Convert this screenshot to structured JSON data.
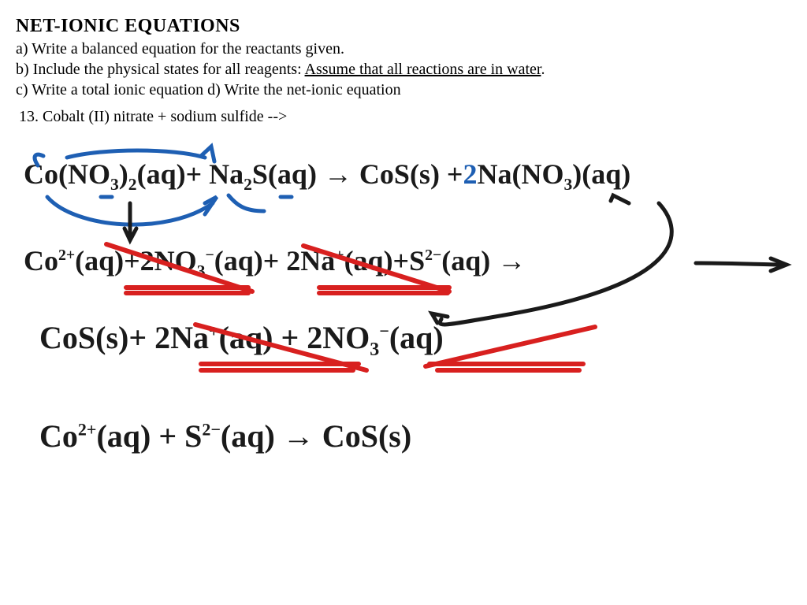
{
  "title": "NET-IONIC EQUATIONS",
  "instr_a": "a)  Write a balanced equation for the reactants given.",
  "instr_b_pre": "b)  Include the physical states for all reagents:  ",
  "instr_b_under": "Assume that all reactions are in water",
  "instr_b_post": ".",
  "instr_cd": "c)  Write a total ionic equation      d)  Write the net-ionic equation",
  "problem": "13. Cobalt (II) nitrate  +  sodium sulfide  -->",
  "colors": {
    "text": "#1a1a1a",
    "blue": "#1e5fb3",
    "red": "#d8201f",
    "black": "#1a1a1a"
  },
  "equations": {
    "line1_html": "Co(NO<sub>3</sub>)<sub>2</sub>(aq)+ Na<sub>2</sub>S(aq) &rarr; CoS(s) +<span class='blue'>2</span>Na(NO<sub>3</sub>)(aq)",
    "line2_html": "Co<sup>2+</sup>(aq)+2NO<sub>3</sub><sup>&minus;</sup>(aq)+ 2Na<sup>+</sup>(aq)+S<sup>2&minus;</sup>(aq) &#8594;",
    "line3_html": "CoS(s)+ 2Na<sup>+</sup>(aq) + 2NO<sub>3</sub><sup>&minus;</sup>(aq)",
    "line4_html": "Co<sup>2+</sup>(aq) + S<sup>2&minus;</sup>(aq) &rarr; CoS(s)"
  },
  "annotations": {
    "blue_strokes": [
      "M55 198 C45 193 40 198 48 210",
      "M60 250 C95 290 210 300 270 258",
      "M260 258 L275 250 L260 272",
      "M85 200 C130 188 220 188 260 200",
      "M255 198 L268 186 L272 205",
      "M290 248 C300 260 310 268 335 268",
      "M128 250 L142 250 M356 250 L370 250"
    ],
    "black_strokes": [
      "M165 258 L165 300 M158 290 L165 305 L173 290",
      "M775 255 L778 248 L798 258",
      "M836 258 C870 295 870 360 640 400 C555 415 555 415 560 405",
      "M555 410 L548 398 L568 402",
      "M883 334 C930 334 970 336 990 336",
      "M978 328 L998 336 L978 344"
    ],
    "red_strokes": [
      "M135 310 L320 370",
      "M160 365 L315 365 M160 372 L315 372",
      "M385 312 L570 370",
      "M405 365 L570 365 M405 372 L568 372",
      "M248 412 L465 470",
      "M255 462 L455 462 M255 470 L448 470",
      "M540 465 L755 415",
      "M545 462 L740 462 M555 470 L735 470"
    ]
  }
}
